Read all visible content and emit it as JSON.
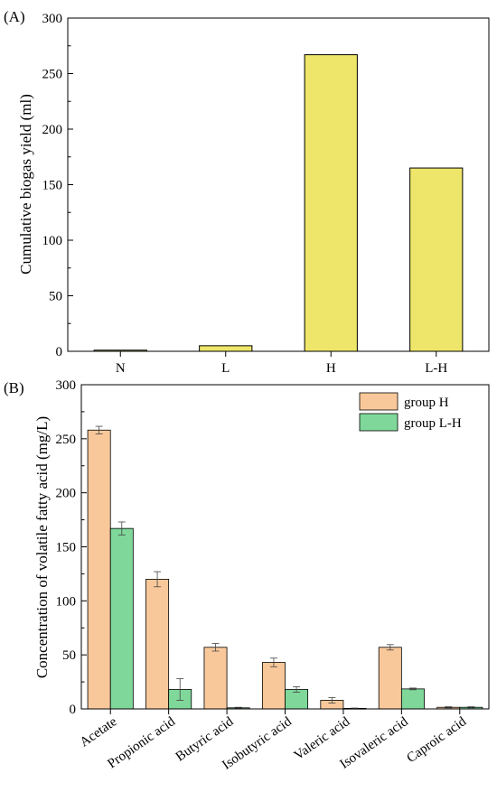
{
  "chart_data": [
    {
      "panel_label": "(A)",
      "type": "bar",
      "title": "",
      "xlabel": "",
      "ylabel": "Cumulative biogas yield (ml)",
      "categories": [
        "N",
        "L",
        "H",
        "L-H"
      ],
      "values": [
        1,
        5,
        267,
        165
      ],
      "ylim": [
        0,
        300
      ],
      "yticks": [
        0,
        50,
        100,
        150,
        200,
        250,
        300
      ],
      "bar_color": "#EEE66A",
      "grid": false,
      "legend": false
    },
    {
      "panel_label": "(B)",
      "type": "bar",
      "title": "",
      "xlabel": "",
      "ylabel": "Concentration of volatile fatty acid (mg/L)",
      "categories": [
        "Acetate",
        "Propionic acid",
        "Butyric acid",
        "Isobutyric acid",
        "Valeric acid",
        "Isovaleric acid",
        "Caproic acid"
      ],
      "series": [
        {
          "name": "group H",
          "color": "#F9C89A",
          "values": [
            258,
            120,
            57,
            43,
            8,
            57,
            1.5
          ],
          "errors": [
            3.5,
            7,
            3.5,
            4,
            2.5,
            2.5,
            0.5
          ]
        },
        {
          "name": "group L-H",
          "color": "#7FD89A",
          "values": [
            167,
            18,
            1,
            18,
            0.5,
            18.5,
            1.5
          ],
          "errors": [
            6,
            10,
            0.5,
            2.5,
            0.3,
            0.8,
            0.5
          ]
        }
      ],
      "ylim": [
        0,
        300
      ],
      "yticks": [
        0,
        50,
        100,
        150,
        200,
        250,
        300
      ],
      "grid": false,
      "legend": "top-right"
    }
  ]
}
